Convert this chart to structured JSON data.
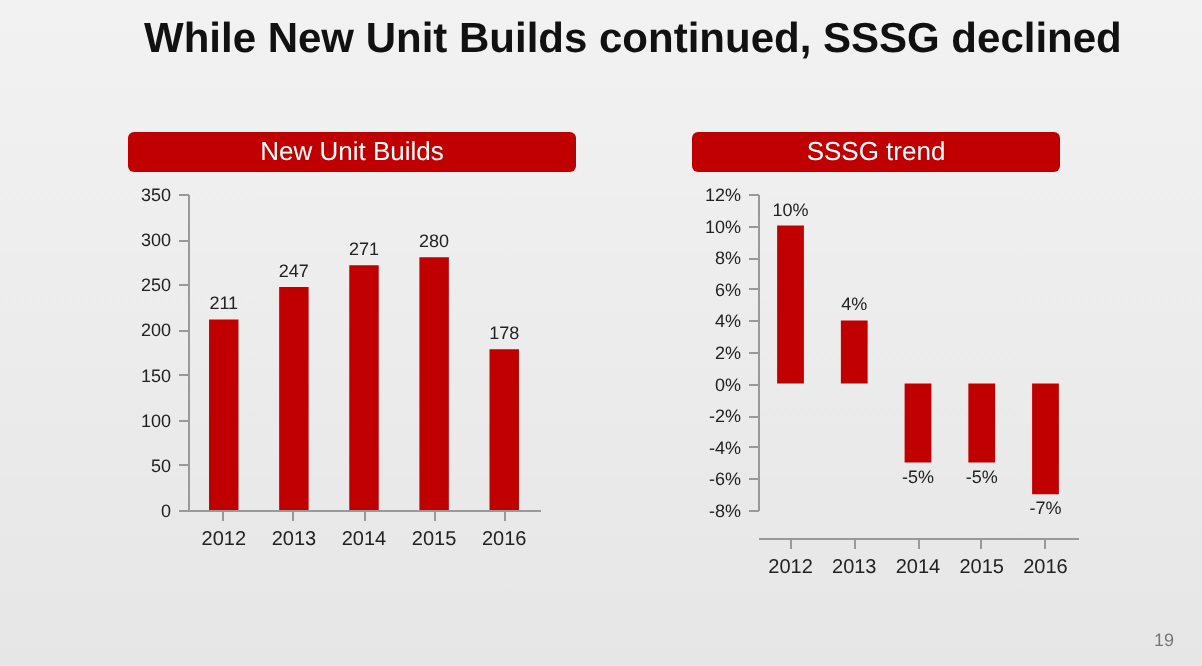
{
  "chart_data": [
    {
      "type": "bar",
      "title": "New Unit Builds",
      "annotations": [
        "While New Unit Builds continued, SSSG declined"
      ],
      "categories": [
        "2012",
        "2013",
        "2014",
        "2015",
        "2016"
      ],
      "values": [
        211,
        247,
        271,
        280,
        178
      ],
      "color": "#c00000",
      "ylim": [
        0,
        350
      ],
      "yticks": [
        0,
        50,
        100,
        150,
        200,
        250,
        300,
        350
      ],
      "data_labels": true
    },
    {
      "type": "bar",
      "title": "SSSG trend",
      "annotations": [
        "19"
      ],
      "categories": [
        "2012",
        "2013",
        "2014",
        "2015",
        "2016"
      ],
      "values": [
        10,
        4,
        -5,
        -5,
        -7
      ],
      "value_labels": [
        "10%",
        "4%",
        "-5%",
        "-5%",
        "-7%"
      ],
      "color": "#c00000",
      "ylim": [
        -8,
        12
      ],
      "yticks": [
        {
          "value": -8,
          "label": "-8%"
        },
        {
          "value": -6,
          "label": "-6%"
        },
        {
          "value": -4,
          "label": "-4%"
        },
        {
          "value": -2,
          "label": "-2%"
        },
        {
          "value": 0,
          "label": "0%"
        },
        {
          "value": 2,
          "label": "2%"
        },
        {
          "value": 4,
          "label": "4%"
        },
        {
          "value": 6,
          "label": "6%"
        },
        {
          "value": 8,
          "label": "8%"
        },
        {
          "value": 10,
          "label": "10%"
        },
        {
          "value": 12,
          "label": "12%"
        }
      ]
    }
  ]
}
